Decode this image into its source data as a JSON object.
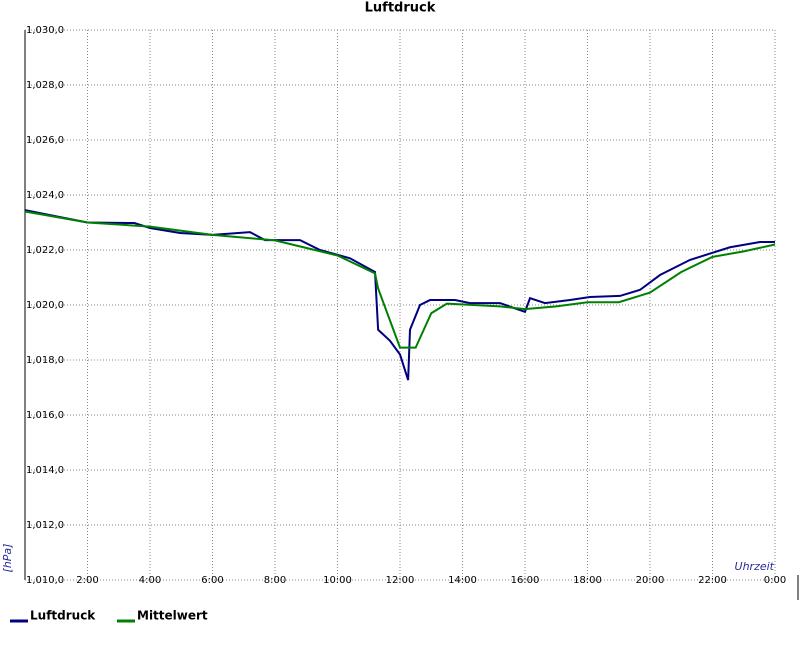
{
  "chart_data": {
    "type": "line",
    "title": "Luftdruck",
    "x_label": "Uhrzeit",
    "y_label": "[hPa]",
    "xlim": [
      0,
      24
    ],
    "ylim": [
      1010,
      1030
    ],
    "xticks": [
      {
        "value": 2,
        "label": "2:00"
      },
      {
        "value": 4,
        "label": "4:00"
      },
      {
        "value": 6,
        "label": "6:00"
      },
      {
        "value": 8,
        "label": "8:00"
      },
      {
        "value": 10,
        "label": "10:00"
      },
      {
        "value": 12,
        "label": "12:00"
      },
      {
        "value": 14,
        "label": "14:00"
      },
      {
        "value": 16,
        "label": "16:00"
      },
      {
        "value": 18,
        "label": "18:00"
      },
      {
        "value": 20,
        "label": "20:00"
      },
      {
        "value": 22,
        "label": "22:00"
      },
      {
        "value": 24,
        "label": "0:00"
      }
    ],
    "yticks": [
      {
        "value": 1010,
        "label": "1,010,0"
      },
      {
        "value": 1012,
        "label": "1,012,0"
      },
      {
        "value": 1014,
        "label": "1,014,0"
      },
      {
        "value": 1016,
        "label": "1,016,0"
      },
      {
        "value": 1018,
        "label": "1,018,0"
      },
      {
        "value": 1020,
        "label": "1,020,0"
      },
      {
        "value": 1022,
        "label": "1,022,0"
      },
      {
        "value": 1024,
        "label": "1,024,0"
      },
      {
        "value": 1026,
        "label": "1,026,0"
      },
      {
        "value": 1028,
        "label": "1,028,0"
      },
      {
        "value": 1030,
        "label": "1,030,0"
      }
    ],
    "grid": true,
    "series": [
      {
        "name": "Luftdruck",
        "color": "#000080",
        "x": [
          0,
          0.8,
          2,
          3.5,
          4,
          4.96,
          6,
          7.2,
          7.68,
          8.8,
          9.44,
          10.4,
          11.2,
          11.3,
          11.68,
          12,
          12.26,
          12.32,
          12.64,
          12.96,
          13.76,
          14.24,
          15.2,
          16,
          16.16,
          16.64,
          17.44,
          18.08,
          19.04,
          19.68,
          20.32,
          21.28,
          22.56,
          23.52,
          24
        ],
        "values": [
          1023.45,
          1023.27,
          1023.0,
          1022.98,
          1022.8,
          1022.62,
          1022.55,
          1022.65,
          1022.36,
          1022.36,
          1022.0,
          1021.7,
          1021.2,
          1019.1,
          1018.7,
          1018.2,
          1017.27,
          1019.1,
          1020.0,
          1020.18,
          1020.18,
          1020.07,
          1020.07,
          1019.75,
          1020.25,
          1020.07,
          1020.18,
          1020.29,
          1020.33,
          1020.55,
          1021.09,
          1021.64,
          1022.1,
          1022.29,
          1022.29
        ]
      },
      {
        "name": "Mittelwert",
        "color": "#008000",
        "x": [
          0,
          2,
          4,
          6,
          8,
          10,
          11.2,
          11.3,
          12,
          12.5,
          13,
          13.5,
          15.2,
          16,
          17,
          18,
          19,
          20,
          21,
          22,
          23,
          24
        ],
        "values": [
          1023.4,
          1023.0,
          1022.85,
          1022.55,
          1022.35,
          1021.8,
          1021.15,
          1020.6,
          1018.45,
          1018.45,
          1019.7,
          1020.05,
          1019.95,
          1019.85,
          1019.95,
          1020.1,
          1020.1,
          1020.45,
          1021.2,
          1021.75,
          1021.95,
          1022.2
        ]
      }
    ]
  }
}
